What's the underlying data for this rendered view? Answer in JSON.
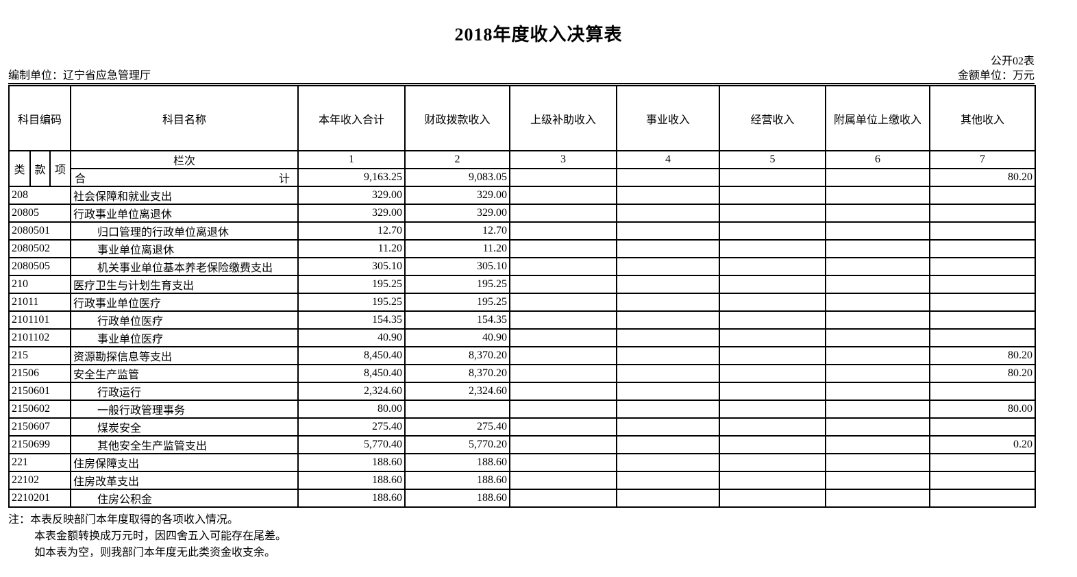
{
  "page": {
    "title": "2018年度收入决算表",
    "form_number": "公开02表",
    "prepared_by_label": "编制单位：",
    "prepared_by_value": "辽宁省应急管理厅",
    "unit_label": "金额单位：",
    "unit_value": "万元"
  },
  "table": {
    "header": {
      "code": "科目编码",
      "name": "科目名称",
      "cols": [
        "本年收入合计",
        "财政拨款收入",
        "上级补助收入",
        "事业收入",
        "经营收入",
        "附属单位上缴收入",
        "其他收入"
      ],
      "sub_code": [
        "类",
        "款",
        "项"
      ],
      "lanci": "栏次",
      "col_nums": [
        "1",
        "2",
        "3",
        "4",
        "5",
        "6",
        "7"
      ]
    },
    "total_row": {
      "label_left": "合",
      "label_right": "计",
      "values": [
        "9,163.25",
        "9,083.05",
        "",
        "",
        "",
        "",
        "80.20"
      ]
    },
    "rows": [
      {
        "code": "208",
        "name": "社会保障和就业支出",
        "bold": true,
        "indent": false,
        "values": [
          "329.00",
          "329.00",
          "",
          "",
          "",
          "",
          ""
        ]
      },
      {
        "code": "20805",
        "name": "行政事业单位离退休",
        "bold": true,
        "indent": false,
        "values": [
          "329.00",
          "329.00",
          "",
          "",
          "",
          "",
          ""
        ]
      },
      {
        "code": "2080501",
        "name": "归口管理的行政单位离退休",
        "bold": false,
        "indent": true,
        "values": [
          "12.70",
          "12.70",
          "",
          "",
          "",
          "",
          ""
        ]
      },
      {
        "code": "2080502",
        "name": "事业单位离退休",
        "bold": false,
        "indent": true,
        "values": [
          "11.20",
          "11.20",
          "",
          "",
          "",
          "",
          ""
        ]
      },
      {
        "code": "2080505",
        "name": "机关事业单位基本养老保险缴费支出",
        "bold": false,
        "indent": true,
        "values": [
          "305.10",
          "305.10",
          "",
          "",
          "",
          "",
          ""
        ]
      },
      {
        "code": "210",
        "name": "医疗卫生与计划生育支出",
        "bold": true,
        "indent": false,
        "values": [
          "195.25",
          "195.25",
          "",
          "",
          "",
          "",
          ""
        ]
      },
      {
        "code": "21011",
        "name": "行政事业单位医疗",
        "bold": true,
        "indent": false,
        "values": [
          "195.25",
          "195.25",
          "",
          "",
          "",
          "",
          ""
        ]
      },
      {
        "code": "2101101",
        "name": "行政单位医疗",
        "bold": false,
        "indent": true,
        "values": [
          "154.35",
          "154.35",
          "",
          "",
          "",
          "",
          ""
        ]
      },
      {
        "code": "2101102",
        "name": "事业单位医疗",
        "bold": false,
        "indent": true,
        "values": [
          "40.90",
          "40.90",
          "",
          "",
          "",
          "",
          ""
        ]
      },
      {
        "code": "215",
        "name": "资源勘探信息等支出",
        "bold": true,
        "indent": false,
        "values": [
          "8,450.40",
          "8,370.20",
          "",
          "",
          "",
          "",
          "80.20"
        ]
      },
      {
        "code": "21506",
        "name": "安全生产监管",
        "bold": true,
        "indent": false,
        "values": [
          "8,450.40",
          "8,370.20",
          "",
          "",
          "",
          "",
          "80.20"
        ]
      },
      {
        "code": "2150601",
        "name": "行政运行",
        "bold": false,
        "indent": true,
        "values": [
          "2,324.60",
          "2,324.60",
          "",
          "",
          "",
          "",
          ""
        ]
      },
      {
        "code": "2150602",
        "name": "一般行政管理事务",
        "bold": false,
        "indent": true,
        "values": [
          "80.00",
          "",
          "",
          "",
          "",
          "",
          "80.00"
        ]
      },
      {
        "code": "2150607",
        "name": "煤炭安全",
        "bold": false,
        "indent": true,
        "values": [
          "275.40",
          "275.40",
          "",
          "",
          "",
          "",
          ""
        ]
      },
      {
        "code": "2150699",
        "name": "其他安全生产监管支出",
        "bold": false,
        "indent": true,
        "values": [
          "5,770.40",
          "5,770.20",
          "",
          "",
          "",
          "",
          "0.20"
        ]
      },
      {
        "code": "221",
        "name": "住房保障支出",
        "bold": true,
        "indent": false,
        "values": [
          "188.60",
          "188.60",
          "",
          "",
          "",
          "",
          ""
        ]
      },
      {
        "code": "22102",
        "name": "住房改革支出",
        "bold": true,
        "indent": false,
        "values": [
          "188.60",
          "188.60",
          "",
          "",
          "",
          "",
          ""
        ]
      },
      {
        "code": "2210201",
        "name": "住房公积金",
        "bold": false,
        "indent": true,
        "values": [
          "188.60",
          "188.60",
          "",
          "",
          "",
          "",
          ""
        ]
      }
    ]
  },
  "notes": {
    "prefix": "注：",
    "lines": [
      "本表反映部门本年度取得的各项收入情况。",
      "本表金额转换成万元时，因四舍五入可能存在尾差。",
      "如本表为空，则我部门本年度无此类资金收支余。"
    ]
  }
}
